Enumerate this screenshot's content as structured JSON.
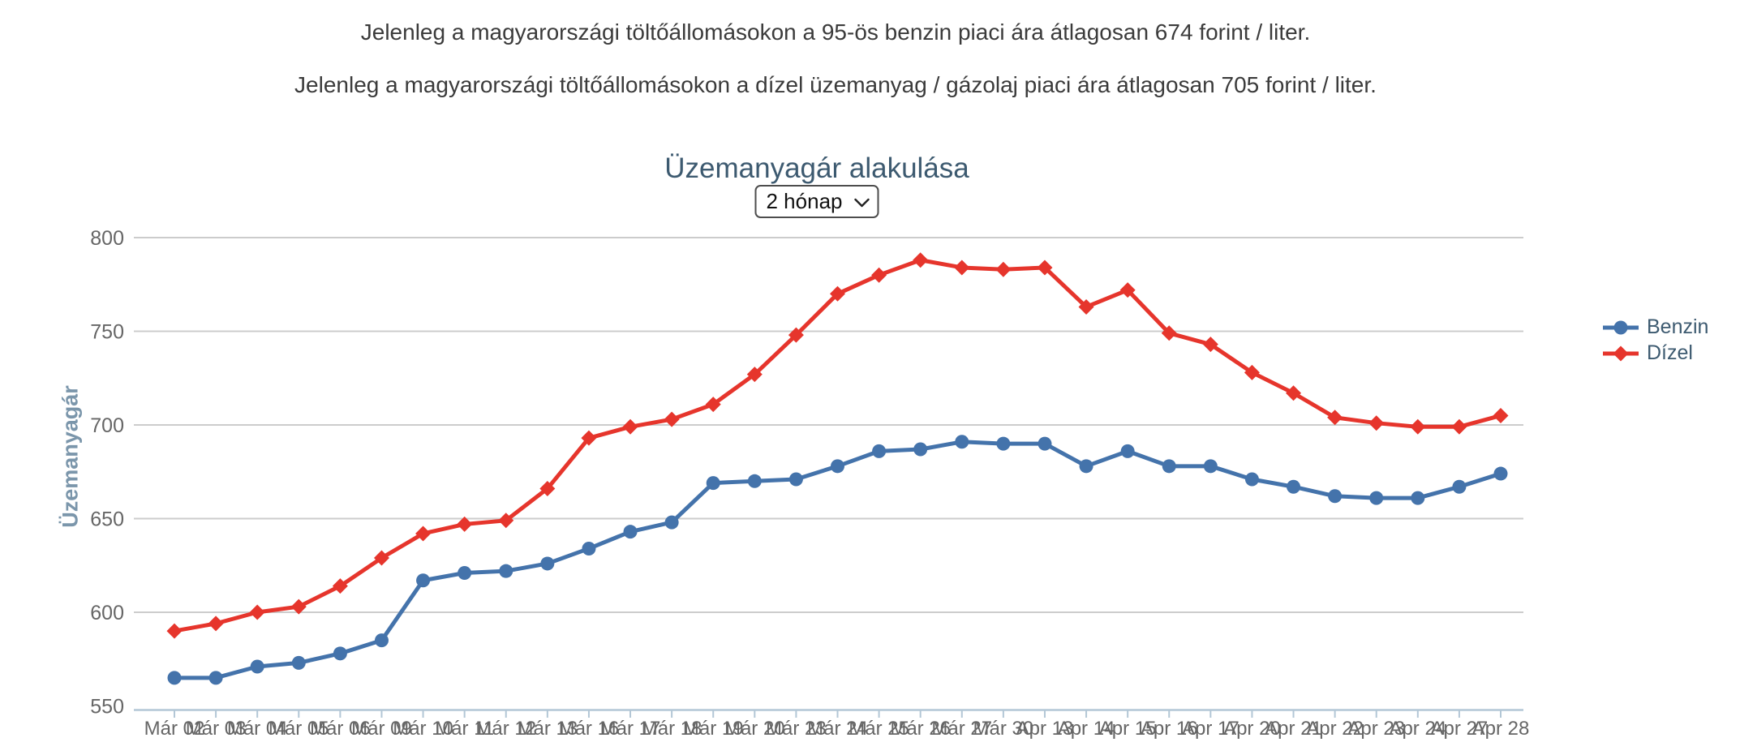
{
  "page": {
    "header_line1": "Jelenleg a magyarországi töltőállomásokon a 95-ös benzin piaci ára átlagosan 674 forint / liter.",
    "header_line2": "Jelenleg a magyarországi töltőállomásokon a dízel üzemanyag / gázolaj piaci ára átlagosan 705 forint / liter."
  },
  "chart": {
    "title": "Üzemanyagár alakulása",
    "timeframe_selected": "2 hónap",
    "y_axis_title": "Üzemanyagár"
  },
  "ui_colors": {
    "title_text": "#3d5a70",
    "legend_text": "#3d5a70",
    "axis_tick_text": "#666666",
    "y_axis_title_text": "#7b96ab",
    "gridline": "#cccccc",
    "axis_line": "#b3c7d6",
    "header_text": "#3b3b3b"
  },
  "chart_data": {
    "type": "line",
    "title": "Üzemanyagár alakulása",
    "xlabel": "",
    "ylabel": "Üzemanyagár",
    "ylim": [
      550,
      800
    ],
    "yticks": [
      550,
      600,
      650,
      700,
      750,
      800
    ],
    "grid": true,
    "legend_position": "right",
    "categories": [
      "Már 02",
      "Már 03",
      "Már 04",
      "Már 05",
      "Már 06",
      "Már 09",
      "Már 10",
      "Már 11",
      "Már 12",
      "Már 13",
      "Már 16",
      "Már 17",
      "Már 18",
      "Már 19",
      "Már 20",
      "Már 23",
      "Már 24",
      "Már 25",
      "Már 26",
      "Már 27",
      "Már 30",
      "Apr 13",
      "Apr 14",
      "Apr 15",
      "Apr 16",
      "Apr 17",
      "Apr 20",
      "Apr 21",
      "Apr 22",
      "Apr 23",
      "Apr 24",
      "Apr 27",
      "Apr 28"
    ],
    "series": [
      {
        "name": "Benzin",
        "color": "#4473ab",
        "marker": "circle",
        "values": [
          565,
          565,
          571,
          573,
          578,
          585,
          617,
          621,
          622,
          626,
          634,
          643,
          648,
          669,
          670,
          671,
          678,
          686,
          687,
          691,
          690,
          690,
          678,
          686,
          678,
          678,
          671,
          667,
          662,
          661,
          661,
          667,
          674
        ]
      },
      {
        "name": "Dízel",
        "color": "#e6352c",
        "marker": "diamond",
        "values": [
          590,
          594,
          600,
          603,
          614,
          629,
          642,
          647,
          649,
          666,
          693,
          699,
          703,
          711,
          727,
          748,
          770,
          780,
          788,
          784,
          783,
          784,
          763,
          772,
          749,
          743,
          728,
          717,
          704,
          701,
          699,
          699,
          705
        ]
      }
    ]
  }
}
